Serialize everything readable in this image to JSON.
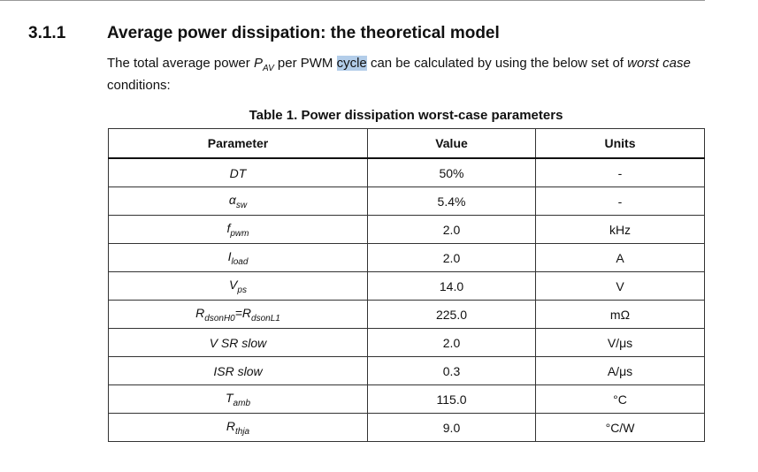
{
  "section": {
    "number": "3.1.1",
    "title": "Average power dissipation: the theoretical model"
  },
  "paragraph": [
    {
      "text": "The total average power "
    },
    {
      "text": "P",
      "italic": true
    },
    {
      "text": "AV",
      "italic": true,
      "sub": true
    },
    {
      "text": " per PWM "
    },
    {
      "text": "cycle",
      "highlight": true
    },
    {
      "text": " can be calculated by using the below set of "
    },
    {
      "text": "worst case",
      "italic": true
    },
    {
      "text": " conditions:"
    }
  ],
  "table": {
    "caption": "Table 1. Power dissipation worst-case parameters",
    "header": [
      "Parameter",
      "Value",
      "Units"
    ],
    "rows": [
      [
        [
          {
            "text": "DT"
          }
        ],
        "50%",
        "-"
      ],
      [
        [
          {
            "text": "α"
          },
          {
            "text": "sw",
            "sub": true
          }
        ],
        "5.4%",
        "-"
      ],
      [
        [
          {
            "text": "f"
          },
          {
            "text": "pwm",
            "sub": true
          }
        ],
        "2.0",
        "kHz"
      ],
      [
        [
          {
            "text": "I"
          },
          {
            "text": "load",
            "sub": true
          }
        ],
        "2.0",
        "A"
      ],
      [
        [
          {
            "text": "V"
          },
          {
            "text": "ps",
            "sub": true
          }
        ],
        "14.0",
        "V"
      ],
      [
        [
          {
            "text": "R"
          },
          {
            "text": "dsonH0",
            "sub": true
          },
          {
            "text": "="
          },
          {
            "text": "R"
          },
          {
            "text": "dsonL1",
            "sub": true
          }
        ],
        "225.0",
        "mΩ"
      ],
      [
        [
          {
            "text": "V SR slow"
          }
        ],
        "2.0",
        "V/μs"
      ],
      [
        [
          {
            "text": "ISR slow"
          }
        ],
        "0.3",
        "A/μs"
      ],
      [
        [
          {
            "text": "T"
          },
          {
            "text": "amb",
            "sub": true
          }
        ],
        "115.0",
        "°C"
      ],
      [
        [
          {
            "text": "R"
          },
          {
            "text": "thja",
            "sub": true
          }
        ],
        "9.0",
        "°C/W"
      ]
    ]
  }
}
